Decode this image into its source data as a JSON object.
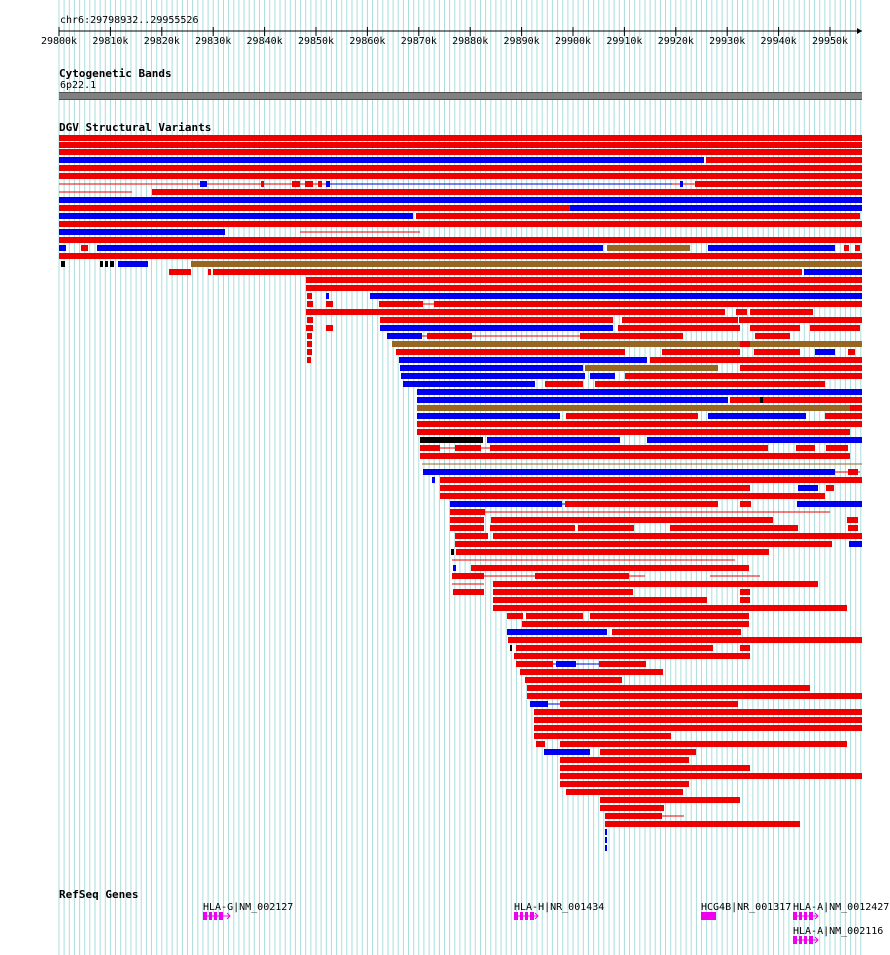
{
  "browser": {
    "location": "chr6:29798932..29955526",
    "ruler_ticks": [
      "29800k",
      "29810k",
      "29820k",
      "29830k",
      "29840k",
      "29850k",
      "29860k",
      "29870k",
      "29880k",
      "29890k",
      "29900k",
      "29910k",
      "29920k",
      "29930k",
      "29940k",
      "29950k"
    ]
  },
  "tracks": {
    "cytoband": {
      "title": "Cytogenetic Bands",
      "band": "6p22.1"
    },
    "dgv": {
      "title": "DGV Structural Variants"
    },
    "refseq": {
      "title": "RefSeq Genes",
      "genes": [
        {
          "label": "HLA-G|NM_002127"
        },
        {
          "label": "HLA-H|NR_001434"
        },
        {
          "label": "HCG4B|NR_001317"
        },
        {
          "label": "HLA-A|NM_0012427"
        },
        {
          "label": "HLA-A|NM_002116"
        }
      ]
    }
  },
  "colors": {
    "grid": "#aadddd",
    "loss": "#ee0000",
    "gain": "#0000ee",
    "gain_loss": "#996622",
    "inversion": "#000000",
    "gene": "#ee00ee"
  }
}
